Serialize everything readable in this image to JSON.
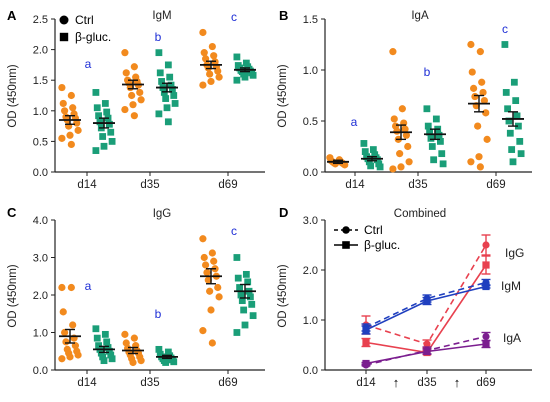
{
  "colors": {
    "ctrl": "#F28A1E",
    "bgluc": "#1A9E78",
    "sig": "#1F2FD6",
    "IgG": "#E8414F",
    "IgM": "#1F3FBF",
    "IgA": "#7B1E8F",
    "axis": "#222222"
  },
  "chart_data": [
    {
      "panel_label": "A",
      "type": "scatter",
      "title": "IgM",
      "ylabel": "OD (450nm)",
      "categories": [
        "d14",
        "d35",
        "d69"
      ],
      "ylim": [
        0,
        2.5
      ],
      "yticks": [
        "0.0",
        "0.5",
        "1.0",
        "1.5",
        "2.0",
        "2.5"
      ],
      "legend": {
        "placement": "top-left",
        "entries": [
          {
            "label": "Ctrl",
            "marker": "circle"
          },
          {
            "label": "β-gluc.",
            "marker": "square"
          }
        ]
      },
      "series": [
        {
          "key": "ctrl",
          "marker": "circle",
          "means": [
            0.85,
            1.43,
            1.75
          ],
          "sem": [
            0.07,
            0.07,
            0.06
          ],
          "points": [
            [
              1.38,
              1.25,
              1.12,
              1.05,
              1.0,
              0.95,
              0.9,
              0.88,
              0.85,
              0.8,
              0.75,
              0.68,
              0.6,
              0.55,
              0.45
            ],
            [
              1.95,
              1.72,
              1.62,
              1.55,
              1.5,
              1.48,
              1.45,
              1.42,
              1.38,
              1.3,
              1.25,
              1.18,
              1.1,
              1.02,
              0.92
            ],
            [
              2.28,
              2.05,
              1.95,
              1.9,
              1.85,
              1.8,
              1.75,
              1.72,
              1.7,
              1.65,
              1.6,
              1.55,
              1.48,
              1.42
            ]
          ]
        },
        {
          "key": "bgluc",
          "marker": "square",
          "means": [
            0.8,
            1.38,
            1.67
          ],
          "sem": [
            0.08,
            0.07,
            0.03
          ],
          "points": [
            [
              1.3,
              1.12,
              1.05,
              0.98,
              0.92,
              0.88,
              0.82,
              0.78,
              0.72,
              0.65,
              0.58,
              0.5,
              0.42,
              0.35
            ],
            [
              1.95,
              1.75,
              1.62,
              1.55,
              1.48,
              1.42,
              1.38,
              1.35,
              1.3,
              1.25,
              1.2,
              1.12,
              1.05,
              0.95,
              0.82
            ],
            [
              1.88,
              1.78,
              1.74,
              1.72,
              1.7,
              1.68,
              1.66,
              1.65,
              1.64,
              1.62,
              1.6,
              1.58,
              1.55,
              1.5
            ]
          ]
        }
      ],
      "significance": [
        "a",
        "b",
        "c"
      ]
    },
    {
      "panel_label": "B",
      "type": "scatter",
      "title": "IgA",
      "ylabel": "OD (450nm)",
      "categories": [
        "d14",
        "d35",
        "d69"
      ],
      "ylim": [
        0,
        1.5
      ],
      "yticks": [
        "0.0",
        "0.5",
        "1.0",
        "1.5"
      ],
      "series": [
        {
          "key": "ctrl",
          "marker": "circle",
          "means": [
            0.1,
            0.39,
            0.67
          ],
          "sem": [
            0.015,
            0.07,
            0.08
          ],
          "points": [
            [
              0.14,
              0.12,
              0.11,
              0.1,
              0.1,
              0.09,
              0.09,
              0.08,
              0.08,
              0.07
            ],
            [
              1.18,
              0.62,
              0.52,
              0.48,
              0.45,
              0.42,
              0.4,
              0.36,
              0.32,
              0.25,
              0.18,
              0.1,
              0.05,
              0.03
            ],
            [
              1.25,
              1.18,
              0.98,
              0.88,
              0.82,
              0.78,
              0.74,
              0.7,
              0.65,
              0.58,
              0.45,
              0.32,
              0.15,
              0.1,
              0.05
            ]
          ]
        },
        {
          "key": "bgluc",
          "marker": "square",
          "means": [
            0.13,
            0.37,
            0.52
          ],
          "sem": [
            0.02,
            0.05,
            0.07
          ],
          "points": [
            [
              0.28,
              0.22,
              0.2,
              0.17,
              0.15,
              0.14,
              0.13,
              0.12,
              0.1,
              0.08,
              0.06,
              0.05
            ],
            [
              0.62,
              0.52,
              0.45,
              0.42,
              0.39,
              0.36,
              0.33,
              0.3,
              0.25,
              0.18,
              0.12,
              0.08
            ],
            [
              1.25,
              0.88,
              0.78,
              0.7,
              0.62,
              0.55,
              0.5,
              0.45,
              0.38,
              0.3,
              0.22,
              0.18,
              0.1
            ]
          ]
        }
      ],
      "significance": [
        "a",
        "b",
        "c"
      ]
    },
    {
      "panel_label": "C",
      "type": "scatter",
      "title": "IgG",
      "ylabel": "OD (450nm)",
      "categories": [
        "d14",
        "d35",
        "d69"
      ],
      "ylim": [
        0,
        4.0
      ],
      "yticks": [
        "0.0",
        "1.0",
        "2.0",
        "3.0",
        "4.0"
      ],
      "series": [
        {
          "key": "ctrl",
          "marker": "circle",
          "means": [
            0.9,
            0.52,
            2.5
          ],
          "sem": [
            0.18,
            0.08,
            0.2
          ],
          "points": [
            [
              2.2,
              2.2,
              1.55,
              1.2,
              1.0,
              0.85,
              0.75,
              0.65,
              0.55,
              0.5,
              0.45,
              0.4,
              0.35,
              0.3
            ],
            [
              0.95,
              0.85,
              0.72,
              0.65,
              0.58,
              0.52,
              0.48,
              0.45,
              0.4,
              0.35,
              0.3,
              0.25,
              0.2
            ],
            [
              3.5,
              3.12,
              3.0,
              2.9,
              2.8,
              2.7,
              2.6,
              2.5,
              2.4,
              2.2,
              2.1,
              1.95,
              1.6,
              1.05,
              0.72
            ]
          ]
        },
        {
          "key": "bgluc",
          "marker": "square",
          "means": [
            0.55,
            0.35,
            2.1
          ],
          "sem": [
            0.08,
            0.04,
            0.18
          ],
          "points": [
            [
              1.1,
              0.95,
              0.85,
              0.75,
              0.65,
              0.6,
              0.55,
              0.5,
              0.45,
              0.4,
              0.35,
              0.3,
              0.25
            ],
            [
              0.55,
              0.48,
              0.42,
              0.38,
              0.35,
              0.32,
              0.3,
              0.27,
              0.25,
              0.22,
              0.2
            ],
            [
              3.0,
              2.55,
              2.45,
              2.35,
              2.2,
              2.1,
              2.0,
              1.95,
              1.85,
              1.75,
              1.6,
              1.45,
              1.2,
              1.0
            ]
          ]
        }
      ],
      "significance": [
        "a",
        "b",
        "c"
      ]
    },
    {
      "panel_label": "D",
      "type": "line",
      "title": "Combined",
      "ylabel": "OD (450nm)",
      "categories": [
        "d14",
        "d35",
        "d69"
      ],
      "ylim": [
        0,
        3.0
      ],
      "yticks": [
        "0.0",
        "1.0",
        "2.0",
        "3.0"
      ],
      "legend": {
        "placement": "top-left",
        "entries": [
          {
            "label": "Ctrl",
            "style": "dashed",
            "marker": "circle"
          },
          {
            "label": "β-gluc.",
            "style": "solid",
            "marker": "square"
          }
        ]
      },
      "arrow_marks": [
        "↑",
        "↑"
      ],
      "series": [
        {
          "name": "IgG",
          "line_label": "IgG",
          "color_key": "IgG",
          "ctrl": {
            "y": [
              0.9,
              0.52,
              2.5
            ],
            "sem": [
              0.18,
              0.08,
              0.2
            ]
          },
          "bgluc": {
            "y": [
              0.55,
              0.35,
              2.1
            ],
            "sem": [
              0.08,
              0.04,
              0.18
            ]
          }
        },
        {
          "name": "IgM",
          "line_label": "IgM",
          "color_key": "IgM",
          "ctrl": {
            "y": [
              0.85,
              1.43,
              1.75
            ],
            "sem": [
              0.07,
              0.07,
              0.06
            ]
          },
          "bgluc": {
            "y": [
              0.8,
              1.38,
              1.67
            ],
            "sem": [
              0.08,
              0.07,
              0.03
            ]
          }
        },
        {
          "name": "IgA",
          "line_label": "IgA",
          "color_key": "IgA",
          "ctrl": {
            "y": [
              0.1,
              0.39,
              0.67
            ],
            "sem": [
              0.015,
              0.07,
              0.08
            ]
          },
          "bgluc": {
            "y": [
              0.13,
              0.37,
              0.52
            ],
            "sem": [
              0.02,
              0.05,
              0.07
            ]
          }
        }
      ]
    }
  ]
}
